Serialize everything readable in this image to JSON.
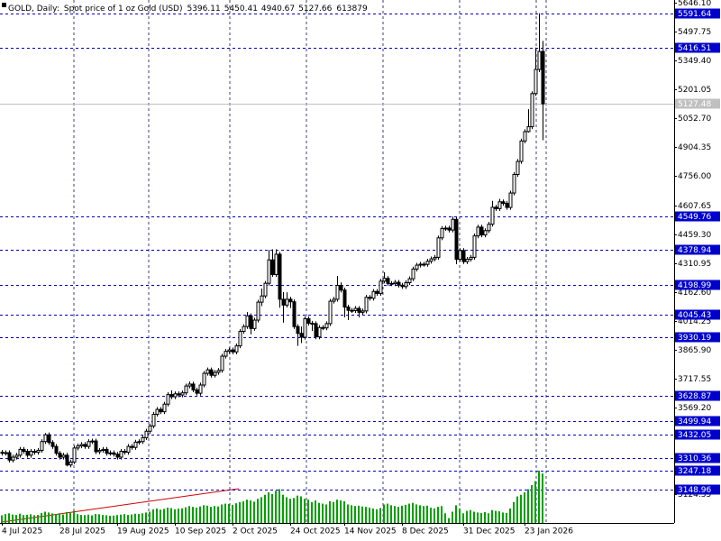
{
  "chart_data": {
    "type": "candlestick",
    "header": {
      "symbol": "GOLD, Daily:",
      "description": "Spot price of 1 oz Gold (USD)"
    },
    "categories": [
      "4 Jul 2025",
      null,
      null,
      null,
      null,
      null,
      null,
      null,
      null,
      null,
      null,
      null,
      null,
      null,
      null,
      null,
      "28 Jul 2025",
      null,
      null,
      null,
      null,
      null,
      null,
      null,
      null,
      null,
      null,
      null,
      null,
      null,
      null,
      null,
      "19 Aug 2025",
      null,
      null,
      null,
      null,
      null,
      null,
      null,
      null,
      null,
      null,
      null,
      null,
      null,
      null,
      null,
      "10 Sep 2025",
      null,
      null,
      null,
      null,
      null,
      null,
      null,
      null,
      null,
      null,
      null,
      null,
      null,
      null,
      null,
      "2 Oct 2025",
      null,
      null,
      null,
      null,
      null,
      null,
      null,
      null,
      null,
      null,
      null,
      null,
      null,
      null,
      null,
      "24 Oct 2025",
      null,
      null,
      null,
      null,
      null,
      null,
      null,
      null,
      null,
      null,
      null,
      null,
      null,
      null,
      "14 Nov 2025",
      null,
      null,
      null,
      null,
      null,
      null,
      null,
      null,
      null,
      null,
      null,
      null,
      null,
      null,
      null,
      "8 Dec 2025",
      null,
      null,
      null,
      null,
      null,
      null,
      null,
      null,
      null,
      null,
      null,
      null,
      null,
      null,
      null,
      null,
      "31 Dec 2025",
      null,
      null,
      null,
      null,
      null,
      null,
      null,
      null,
      null,
      null,
      null,
      null,
      null,
      null,
      null,
      null,
      "23 Jan 2026",
      null,
      null,
      null,
      null,
      null
    ],
    "open": [
      3340,
      3335,
      3338,
      3300,
      3315,
      3325,
      3355,
      3345,
      3325,
      3345,
      3340,
      3350,
      3395,
      3430,
      3390,
      3370,
      3335,
      3315,
      3325,
      3275,
      3290,
      3362,
      3373,
      3380,
      3370,
      3395,
      3398,
      3343,
      3350,
      3355,
      3335,
      3337,
      3330,
      3315,
      3345,
      3340,
      3370,
      3365,
      3392,
      3395,
      3415,
      3448,
      3475,
      3535,
      3560,
      3548,
      3587,
      3636,
      3625,
      3640,
      3634,
      3645,
      3680,
      3690,
      3660,
      3643,
      3685,
      3745,
      3763,
      3735,
      3750,
      3760,
      3833,
      3858,
      3865,
      3855,
      3886,
      3960,
      3985,
      4040,
      3975,
      4018,
      4110,
      4142,
      4207,
      4327,
      4252,
      4356,
      4125,
      4095,
      4125,
      4112,
      3985,
      3950,
      3930,
      4025,
      4002,
      4000,
      3932,
      3980,
      3978,
      4000,
      4115,
      4125,
      4196,
      4172,
      4085,
      4068,
      4067,
      4078,
      4058,
      4065,
      4135,
      4130,
      4165,
      4155,
      4218,
      4232,
      4206,
      4205,
      4212,
      4197,
      4190,
      4210,
      4230,
      4280,
      4300,
      4305,
      4304,
      4320,
      4332,
      4340,
      4440,
      4488,
      4490,
      4480,
      4535,
      4330,
      4375,
      4318,
      4330,
      4340,
      4450,
      4495,
      4455,
      4477,
      4510,
      4597,
      4590,
      4625,
      4617,
      4596,
      4670,
      4765,
      4832,
      4937,
      4985,
      5010,
      5180,
      5304,
      5396.11
    ],
    "high": [
      3352,
      3350,
      3350,
      3327,
      3337,
      3367,
      3367,
      3357,
      3357,
      3357,
      3362,
      3407,
      3439,
      3442,
      3402,
      3382,
      3347,
      3337,
      3337,
      3302,
      3374,
      3385,
      3392,
      3392,
      3407,
      3410,
      3410,
      3362,
      3367,
      3367,
      3349,
      3349,
      3342,
      3357,
      3357,
      3382,
      3382,
      3404,
      3407,
      3427,
      3460,
      3487,
      3547,
      3572,
      3572,
      3599,
      3648,
      3658,
      3652,
      3652,
      3657,
      3692,
      3703,
      3702,
      3672,
      3697,
      3757,
      3775,
      3775,
      3762,
      3772,
      3845,
      3870,
      3877,
      3877,
      3898,
      3972,
      3997,
      4059,
      4052,
      4030,
      4122,
      4180,
      4219,
      4379,
      4381,
      4381,
      4368,
      4162,
      4161,
      4137,
      4124,
      3997,
      3985,
      4037,
      4037,
      4014,
      4012,
      3992,
      3992,
      4012,
      4127,
      4137,
      4245,
      4212,
      4184,
      4097,
      4080,
      4090,
      4090,
      4077,
      4147,
      4147,
      4177,
      4177,
      4230,
      4264,
      4244,
      4218,
      4224,
      4224,
      4209,
      4222,
      4242,
      4292,
      4312,
      4317,
      4317,
      4332,
      4344,
      4352,
      4452,
      4500,
      4502,
      4502,
      4550,
      4547,
      4387,
      4387,
      4342,
      4352,
      4462,
      4507,
      4507,
      4489,
      4522,
      4630,
      4609,
      4640,
      4637,
      4629,
      4682,
      4777,
      4844,
      4949,
      4997,
      5100,
      5192,
      5416,
      5591.64,
      5450.41
    ],
    "low": [
      3323,
      3323,
      3288,
      3288,
      3303,
      3313,
      3333,
      3313,
      3313,
      3328,
      3328,
      3338,
      3383,
      3378,
      3358,
      3323,
      3303,
      3303,
      3268,
      3263,
      3280,
      3350,
      3361,
      3358,
      3358,
      3383,
      3331,
      3331,
      3338,
      3323,
      3323,
      3318,
      3303,
      3303,
      3328,
      3328,
      3353,
      3353,
      3380,
      3383,
      3403,
      3436,
      3463,
      3523,
      3536,
      3536,
      3575,
      3613,
      3613,
      3622,
      3622,
      3633,
      3668,
      3648,
      3631,
      3631,
      3673,
      3733,
      3723,
      3723,
      3738,
      3748,
      3821,
      3846,
      3843,
      3843,
      3874,
      3948,
      3973,
      3945,
      3963,
      4006,
      4090,
      4130,
      4195,
      4240,
      4240,
      4082,
      4005,
      4083,
      4080,
      3973,
      3886,
      3900,
      3918,
      3990,
      3962,
      3920,
      3920,
      3966,
      3966,
      3988,
      4103,
      4113,
      4160,
      4032,
      4018,
      4055,
      4055,
      4032,
      4046,
      4053,
      4118,
      4118,
      4143,
      4143,
      4206,
      4194,
      4193,
      4193,
      4185,
      4178,
      4178,
      4198,
      4218,
      4268,
      4288,
      4292,
      4292,
      4308,
      4320,
      4328,
      4428,
      4476,
      4468,
      4468,
      4305,
      4318,
      4306,
      4306,
      4318,
      4328,
      4438,
      4443,
      4443,
      4465,
      4498,
      4578,
      4578,
      4605,
      4584,
      4584,
      4658,
      4753,
      4820,
      4925,
      4980,
      4998,
      5168,
      5290,
      4940.67
    ],
    "close": [
      3335,
      3338,
      3300,
      3315,
      3325,
      3355,
      3345,
      3325,
      3345,
      3340,
      3350,
      3395,
      3430,
      3390,
      3370,
      3335,
      3315,
      3325,
      3275,
      3290,
      3362,
      3373,
      3380,
      3370,
      3395,
      3398,
      3343,
      3350,
      3355,
      3335,
      3337,
      3330,
      3315,
      3345,
      3340,
      3370,
      3365,
      3392,
      3395,
      3415,
      3448,
      3475,
      3535,
      3560,
      3548,
      3587,
      3636,
      3625,
      3640,
      3634,
      3645,
      3680,
      3690,
      3660,
      3643,
      3685,
      3745,
      3763,
      3735,
      3750,
      3760,
      3833,
      3858,
      3865,
      3855,
      3886,
      3960,
      3985,
      4040,
      3975,
      4018,
      4110,
      4142,
      4207,
      4327,
      4252,
      4356,
      4125,
      4095,
      4125,
      4112,
      3985,
      3950,
      3930,
      4025,
      4002,
      4000,
      3932,
      3980,
      3978,
      4000,
      4115,
      4125,
      4196,
      4172,
      4085,
      4068,
      4067,
      4078,
      4058,
      4065,
      4135,
      4130,
      4165,
      4155,
      4218,
      4232,
      4206,
      4205,
      4212,
      4197,
      4190,
      4210,
      4230,
      4280,
      4300,
      4305,
      4304,
      4320,
      4332,
      4340,
      4440,
      4488,
      4490,
      4480,
      4535,
      4330,
      4375,
      4318,
      4330,
      4340,
      4450,
      4495,
      4455,
      4477,
      4510,
      4597,
      4590,
      4625,
      4617,
      4596,
      4670,
      4765,
      4832,
      4937,
      4985,
      5010,
      5180,
      5304,
      5396.11,
      5127.66
    ],
    "volume": [
      95000,
      110000,
      120000,
      105000,
      100000,
      115000,
      98000,
      102000,
      108000,
      96000,
      100000,
      125000,
      140000,
      130000,
      118000,
      112000,
      120000,
      105000,
      135000,
      125000,
      150000,
      110000,
      100000,
      98000,
      104000,
      95000,
      112000,
      108000,
      100000,
      96000,
      90000,
      92000,
      98000,
      104000,
      110000,
      100000,
      106000,
      115000,
      112000,
      120000,
      130000,
      140000,
      170000,
      180000,
      165000,
      175000,
      190000,
      185000,
      170000,
      178000,
      182000,
      195000,
      210000,
      200000,
      190000,
      205000,
      220000,
      215000,
      200000,
      210000,
      205000,
      230000,
      240000,
      235000,
      225000,
      245000,
      260000,
      270000,
      290000,
      280000,
      265000,
      300000,
      320000,
      350000,
      380000,
      360000,
      400000,
      420000,
      350000,
      320000,
      300000,
      310000,
      340000,
      330000,
      300000,
      290000,
      260000,
      280000,
      250000,
      240000,
      230000,
      270000,
      260000,
      290000,
      280000,
      270000,
      230000,
      220000,
      210000,
      215000,
      205000,
      200000,
      190000,
      180000,
      170000,
      185000,
      230000,
      240000,
      220000,
      210000,
      200000,
      215000,
      225000,
      240000,
      250000,
      230000,
      220000,
      210000,
      215000,
      190000,
      180000,
      200000,
      210000,
      120000,
      60000,
      140000,
      220000,
      180000,
      120000,
      150000,
      160000,
      140000,
      130000,
      125000,
      135000,
      120000,
      160000,
      150000,
      145000,
      130000,
      125000,
      180000,
      260000,
      330000,
      350000,
      380000,
      420000,
      470000,
      520000,
      650000,
      613879
    ],
    "ylim": [
      2977.5,
      5660
    ],
    "yticks": [
      {
        "value": 5646.1,
        "label": "5646.10"
      },
      5497.75,
      {
        "value": 5349.4,
        "label": "5349.40"
      },
      5201.05,
      {
        "value": 5052.7,
        "label": "5052.70"
      },
      4904.35,
      {
        "value": 4756,
        "label": "4756.00"
      },
      4607.65,
      {
        "value": 4459.3,
        "label": "4459.30"
      },
      4310.95,
      {
        "value": 4162.6,
        "label": "4162.60"
      },
      4014.25,
      {
        "value": 3865.9,
        "label": "3865.90"
      },
      3717.55,
      {
        "value": 3569.2,
        "label": "3569.20"
      },
      3124.35
    ],
    "levels": [
      5591.64,
      5416.51,
      4549.76,
      4378.94,
      4198.99,
      4045.43,
      3930.19,
      3628.87,
      3499.94,
      3432.05,
      3310.36,
      3247.18,
      3148.96
    ],
    "bid": 5127.48,
    "up_color": "#ffffff",
    "down_color": "#000000",
    "volume_color": "#00a000",
    "level_color": "#0000cd",
    "bid_color": "#c0c0c0"
  }
}
